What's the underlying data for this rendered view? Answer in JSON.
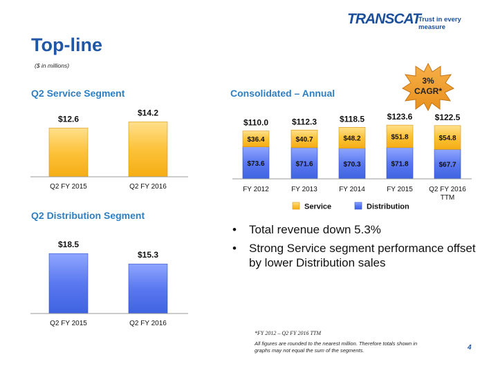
{
  "logo": {
    "word": "TRANSCAT",
    "tagline": "Trust in every measure"
  },
  "page": {
    "title": "Top-line",
    "units": "($ in millions)",
    "number": "4",
    "cagr": {
      "line1": "3%",
      "line2": "CAGR*"
    }
  },
  "colors": {
    "service": "#fcc23a",
    "distribution": "#4c73e8",
    "accent": "#2e7fc2",
    "title": "#1f56a6"
  },
  "chart_data": [
    {
      "id": "service",
      "type": "bar",
      "title": "Q2 Service Segment",
      "categories": [
        "Q2 FY 2015",
        "Q2 FY 2016"
      ],
      "values": [
        12.6,
        14.2
      ],
      "labels": [
        "$12.6",
        "$14.2"
      ],
      "ylim": [
        0,
        15
      ]
    },
    {
      "id": "distribution",
      "type": "bar",
      "title": "Q2 Distribution Segment",
      "categories": [
        "Q2 FY 2015",
        "Q2 FY 2016"
      ],
      "values": [
        18.5,
        15.3
      ],
      "labels": [
        "$18.5",
        "$15.3"
      ],
      "ylim": [
        0,
        19.5
      ]
    },
    {
      "id": "consolidated",
      "type": "bar",
      "stacked": true,
      "title": "Consolidated – Annual",
      "categories": [
        [
          "FY 2012"
        ],
        [
          "FY 2013"
        ],
        [
          "FY 2014"
        ],
        [
          "FY 2015"
        ],
        [
          "Q2 FY 2016",
          "TTM"
        ]
      ],
      "series": [
        {
          "name": "Distribution",
          "values": [
            73.6,
            71.6,
            70.3,
            71.8,
            67.7
          ],
          "labels": [
            "$73.6",
            "$71.6",
            "$70.3",
            "$71.8",
            "$67.7"
          ]
        },
        {
          "name": "Service",
          "values": [
            36.4,
            40.7,
            48.2,
            51.8,
            54.8
          ],
          "labels": [
            "$36.4",
            "$40.7",
            "$48.2",
            "$51.8",
            "$54.8"
          ]
        }
      ],
      "totals": [
        110.0,
        112.3,
        118.5,
        123.6,
        122.5
      ],
      "total_labels": [
        "$110.0",
        "$112.3",
        "$118.5",
        "$123.6",
        "$122.5"
      ],
      "legend": [
        "Service",
        "Distribution"
      ],
      "legend_position": "bottom",
      "ylim": [
        0,
        130
      ]
    }
  ],
  "bullets": [
    "Total revenue down 5.3%",
    "Strong Service segment performance offset by lower Distribution sales"
  ],
  "bullet_symbol": "•",
  "footnote": "*FY 2012 –  Q2 FY 2016 TTM",
  "disclaimer": "All figures are rounded to the nearest million. Therefore totals shown in graphs may not equal the sum of the segments."
}
